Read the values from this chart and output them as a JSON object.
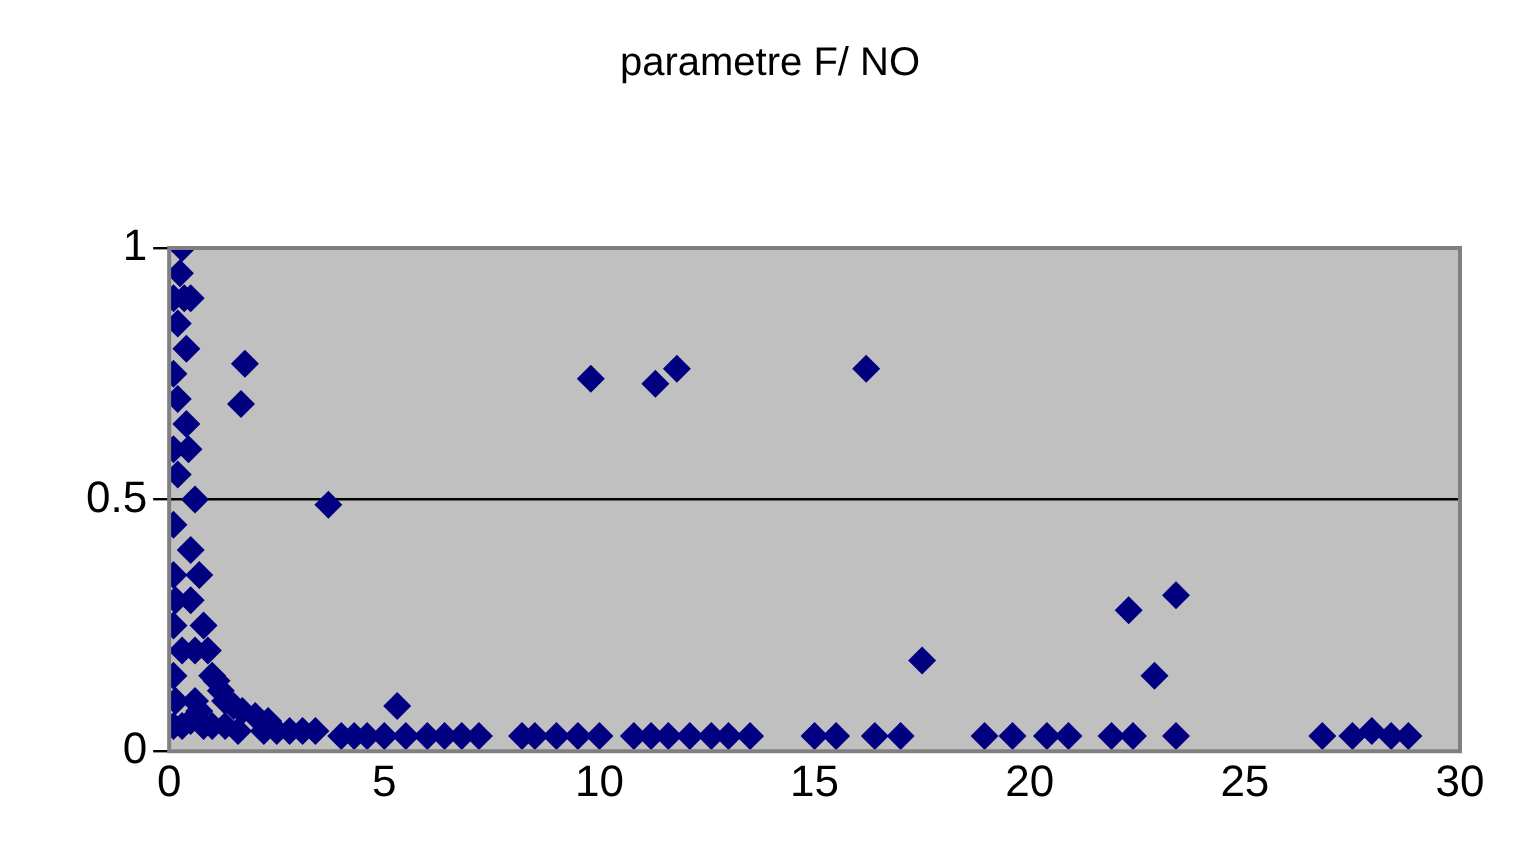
{
  "chart_data": {
    "type": "scatter",
    "title": "parametre F/ NO",
    "marker": "diamond",
    "grid": "y",
    "xlim": [
      0,
      30
    ],
    "xticks": [
      0,
      5,
      10,
      15,
      20,
      25,
      30
    ],
    "ylim": [
      0,
      1
    ],
    "yticks": [
      0,
      0.5,
      1
    ],
    "series": [
      {
        "color": "#000080",
        "x": [
          0.1,
          0.1,
          0.1,
          0.1,
          0.1,
          0.1,
          0.1,
          0.1,
          0.15,
          0.15,
          0.2,
          0.2,
          0.2,
          0.25,
          0.3,
          0.35,
          0.4,
          0.45,
          0.5,
          0.3,
          0.4,
          0.5,
          0.5,
          0.6,
          0.6,
          0.6,
          0.7,
          0.7,
          0.8,
          0.9,
          1.0,
          1.1,
          1.2,
          1.3,
          1.5,
          1.7,
          2.0,
          2.3,
          0.3,
          0.5,
          0.8,
          1.0,
          1.3,
          1.6,
          1.67,
          1.76,
          2.2,
          2.5,
          2.8,
          3.1,
          3.4,
          3.7,
          4.0,
          4.3,
          4.6,
          5.0,
          5.3,
          5.5,
          6.0,
          6.4,
          6.8,
          7.2,
          8.2,
          8.5,
          9.0,
          9.5,
          9.8,
          10.0,
          10.8,
          11.2,
          11.3,
          11.6,
          11.8,
          12.1,
          12.6,
          13.0,
          13.5,
          15.0,
          15.5,
          16.2,
          16.4,
          17.0,
          17.5,
          18.95,
          19.6,
          20.4,
          20.9,
          21.9,
          22.3,
          22.4,
          22.9,
          23.4,
          23.4,
          26.8,
          27.5,
          27.95,
          28.4,
          28.8
        ],
        "values": [
          0.05,
          0.15,
          0.25,
          0.35,
          0.45,
          0.6,
          0.75,
          0.9,
          0.1,
          0.3,
          0.55,
          0.7,
          0.85,
          0.95,
          1.0,
          0.9,
          0.8,
          0.6,
          0.4,
          0.2,
          0.65,
          0.9,
          0.3,
          0.5,
          0.2,
          0.1,
          0.35,
          0.08,
          0.25,
          0.2,
          0.15,
          0.14,
          0.12,
          0.1,
          0.09,
          0.08,
          0.07,
          0.06,
          0.05,
          0.06,
          0.05,
          0.05,
          0.05,
          0.04,
          0.69,
          0.77,
          0.04,
          0.04,
          0.04,
          0.04,
          0.04,
          0.49,
          0.03,
          0.03,
          0.03,
          0.03,
          0.09,
          0.03,
          0.03,
          0.03,
          0.03,
          0.03,
          0.03,
          0.03,
          0.03,
          0.03,
          0.74,
          0.03,
          0.03,
          0.03,
          0.73,
          0.03,
          0.76,
          0.03,
          0.03,
          0.03,
          0.03,
          0.03,
          0.03,
          0.76,
          0.03,
          0.03,
          0.18,
          0.03,
          0.03,
          0.03,
          0.03,
          0.03,
          0.28,
          0.03,
          0.15,
          0.31,
          0.03,
          0.03,
          0.03,
          0.04,
          0.03,
          0.03
        ]
      }
    ]
  }
}
